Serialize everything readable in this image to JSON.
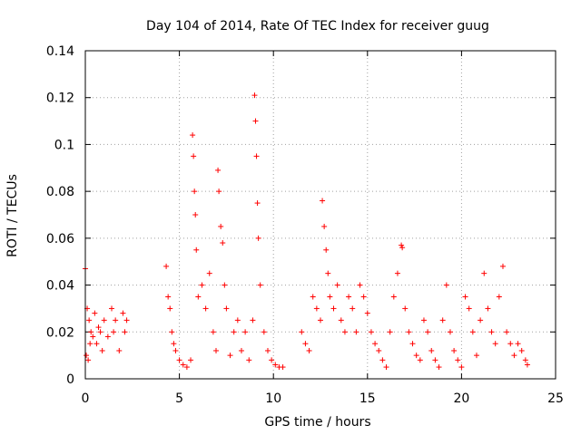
{
  "chart_data": {
    "type": "scatter",
    "title": "Day 104 of 2014, Rate Of TEC Index for receiver guug",
    "xlabel": "GPS time / hours",
    "ylabel": "ROTI / TECUs",
    "xlim": [
      0,
      25
    ],
    "ylim": [
      0,
      0.14
    ],
    "x_ticks": [
      0,
      5,
      10,
      15,
      20,
      25
    ],
    "x_tick_labels": [
      "0",
      "5",
      "10",
      "15",
      "20",
      "25"
    ],
    "y_ticks": [
      0,
      0.02,
      0.04,
      0.06,
      0.08,
      0.1,
      0.12,
      0.14
    ],
    "y_tick_labels": [
      "0",
      "0.02",
      "0.04",
      "0.06",
      "0.08",
      "0.1",
      "0.12",
      "0.14"
    ],
    "grid": true,
    "marker": "+",
    "color": "#ff0000",
    "series": [
      {
        "x": [
          0.0,
          0.05,
          0.1,
          0.15,
          0.2,
          0.25,
          0.3,
          0.4,
          0.5,
          0.6,
          0.7,
          0.8,
          0.9,
          1.0,
          1.2,
          1.4,
          1.5,
          1.6,
          1.8,
          2.0,
          2.1,
          2.2,
          4.3,
          4.4,
          4.5,
          4.6,
          4.7,
          4.8,
          5.0,
          5.2,
          5.4,
          5.6,
          5.7,
          5.75,
          5.8,
          5.85,
          5.9,
          6.0,
          6.2,
          6.4,
          6.6,
          6.8,
          6.95,
          7.05,
          7.1,
          7.2,
          7.3,
          7.4,
          7.5,
          7.7,
          7.9,
          8.1,
          8.3,
          8.5,
          8.7,
          8.9,
          9.0,
          9.05,
          9.1,
          9.15,
          9.2,
          9.3,
          9.5,
          9.7,
          9.9,
          10.1,
          10.3,
          10.5,
          11.5,
          11.7,
          11.9,
          12.1,
          12.3,
          12.5,
          12.6,
          12.7,
          12.8,
          12.9,
          13.0,
          13.2,
          13.4,
          13.6,
          13.8,
          14.0,
          14.2,
          14.4,
          14.6,
          14.8,
          15.0,
          15.2,
          15.4,
          15.6,
          15.8,
          16.0,
          16.2,
          16.4,
          16.6,
          16.8,
          16.85,
          17.0,
          17.2,
          17.4,
          17.6,
          17.8,
          18.0,
          18.2,
          18.4,
          18.6,
          18.8,
          19.0,
          19.2,
          19.4,
          19.6,
          19.8,
          20.0,
          20.2,
          20.4,
          20.6,
          20.8,
          21.0,
          21.2,
          21.4,
          21.6,
          21.8,
          22.0,
          22.2,
          22.4,
          22.6,
          22.8,
          23.0,
          23.2,
          23.4,
          23.5
        ],
        "y": [
          0.047,
          0.01,
          0.03,
          0.008,
          0.025,
          0.015,
          0.02,
          0.018,
          0.028,
          0.015,
          0.022,
          0.02,
          0.012,
          0.025,
          0.018,
          0.03,
          0.02,
          0.025,
          0.012,
          0.028,
          0.02,
          0.025,
          0.048,
          0.035,
          0.03,
          0.02,
          0.015,
          0.012,
          0.008,
          0.006,
          0.005,
          0.008,
          0.104,
          0.095,
          0.08,
          0.07,
          0.055,
          0.035,
          0.04,
          0.03,
          0.045,
          0.02,
          0.012,
          0.089,
          0.08,
          0.065,
          0.058,
          0.04,
          0.03,
          0.01,
          0.02,
          0.025,
          0.012,
          0.02,
          0.008,
          0.025,
          0.121,
          0.11,
          0.095,
          0.075,
          0.06,
          0.04,
          0.02,
          0.012,
          0.008,
          0.006,
          0.005,
          0.005,
          0.02,
          0.015,
          0.012,
          0.035,
          0.03,
          0.025,
          0.076,
          0.065,
          0.055,
          0.045,
          0.035,
          0.03,
          0.04,
          0.025,
          0.02,
          0.035,
          0.03,
          0.02,
          0.04,
          0.035,
          0.028,
          0.02,
          0.015,
          0.012,
          0.008,
          0.005,
          0.02,
          0.035,
          0.045,
          0.057,
          0.056,
          0.03,
          0.02,
          0.015,
          0.01,
          0.008,
          0.025,
          0.02,
          0.012,
          0.008,
          0.005,
          0.025,
          0.04,
          0.02,
          0.012,
          0.008,
          0.005,
          0.035,
          0.03,
          0.02,
          0.01,
          0.025,
          0.045,
          0.03,
          0.02,
          0.015,
          0.035,
          0.048,
          0.02,
          0.015,
          0.01,
          0.015,
          0.012,
          0.008,
          0.006
        ]
      }
    ]
  }
}
